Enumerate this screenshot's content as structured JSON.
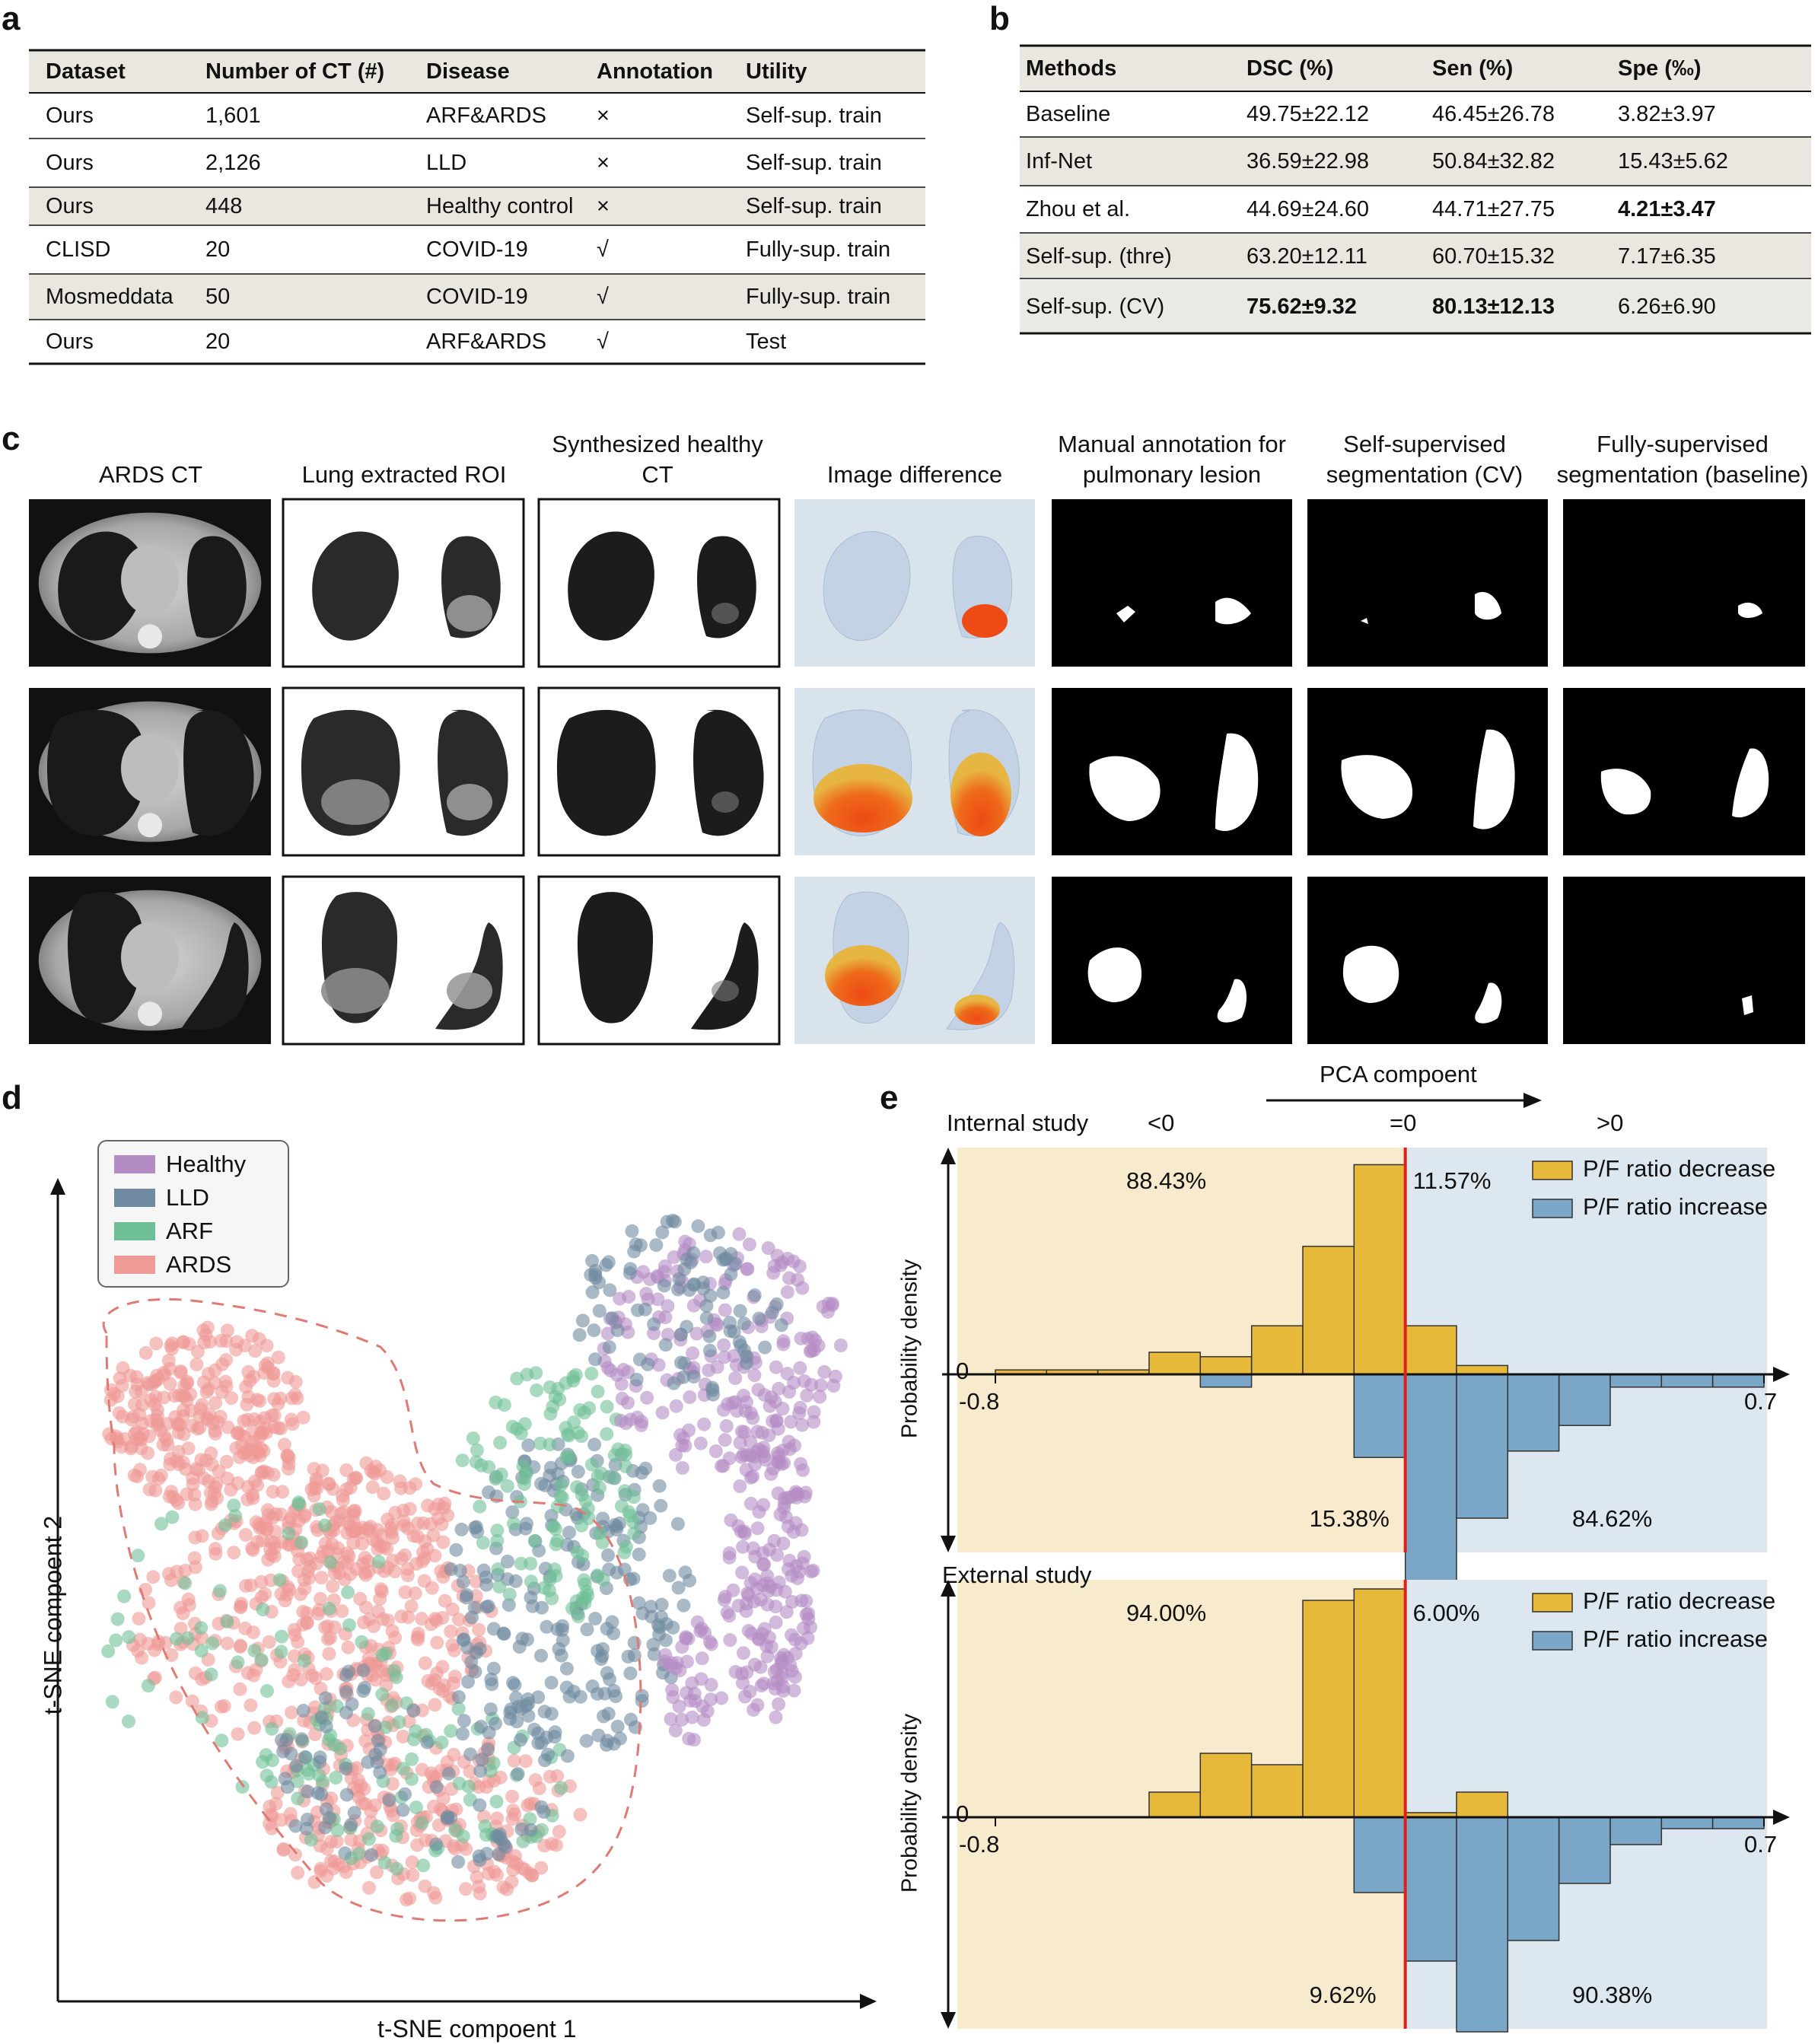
{
  "panels": {
    "a": "a",
    "b": "b",
    "c": "c",
    "d": "d",
    "e": "e"
  },
  "table_a": {
    "headers": [
      "Dataset",
      "Number of CT (#)",
      "Disease",
      "Annotation",
      "Utility"
    ],
    "rows": [
      [
        "Ours",
        "1,601",
        "ARF&ARDS",
        "×",
        "Self-sup. train"
      ],
      [
        "Ours",
        "2,126",
        "LLD",
        "×",
        "Self-sup. train"
      ],
      [
        "Ours",
        "448",
        "Healthy control",
        "×",
        "Self-sup. train"
      ],
      [
        "CLISD",
        "20",
        "COVID-19",
        "√",
        "Fully-sup. train"
      ],
      [
        "Mosmeddata",
        "50",
        "COVID-19",
        "√",
        "Fully-sup. train"
      ],
      [
        "Ours",
        "20",
        "ARF&ARDS",
        "√",
        "Test"
      ]
    ]
  },
  "table_b": {
    "headers": [
      "Methods",
      "DSC (%)",
      "Sen (%)",
      "Spe (‰)"
    ],
    "rows": [
      [
        "Baseline",
        "49.75±22.12",
        "46.45±26.78",
        "3.82±3.97"
      ],
      [
        "Inf-Net",
        "36.59±22.98",
        "50.84±32.82",
        "15.43±5.62"
      ],
      [
        "Zhou et al.",
        "44.69±24.60",
        "44.71±27.75",
        "4.21±3.47"
      ],
      [
        "Self-sup. (thre)",
        "63.20±12.11",
        "60.70±15.32",
        "7.17±6.35"
      ],
      [
        "Self-sup. (CV)",
        "75.62±9.32",
        "80.13±12.13",
        "6.26±6.90"
      ]
    ]
  },
  "panel_c": {
    "columns": [
      "ARDS CT",
      "Lung extracted ROI",
      "Synthesized healthy CT",
      "Image difference",
      "Manual annotation for pulmonary lesion",
      "Self-supervised segmentation (CV)",
      "Fully-supervised segmentation (baseline)"
    ]
  },
  "panel_d": {
    "legend": [
      {
        "label": "Healthy",
        "color": "#b48cc4"
      },
      {
        "label": "LLD",
        "color": "#6f8aa0"
      },
      {
        "label": "ARF",
        "color": "#6fbf96"
      },
      {
        "label": "ARDS",
        "color": "#ef9a96"
      }
    ],
    "xlabel": "t-SNE compoent 1",
    "ylabel": "t-SNE compoent 2"
  },
  "panel_e": {
    "pca_label": "PCA compoent",
    "zones": [
      "<0",
      "=0",
      ">0"
    ],
    "series_colors": {
      "decrease": "#e6b93a",
      "increase": "#7aa6c7",
      "neg_bg": "#f8ebcd",
      "pos_bg": "#dde7f0",
      "threshold": "#e0201a"
    },
    "legend": [
      "P/F ratio decrease",
      "P/F ratio increase"
    ],
    "ylabel": "Probability density",
    "zero": "0",
    "xmin_label": "-0.8",
    "xmax_label": "0.7",
    "internal": {
      "title": "Internal study",
      "pct_top_left": "88.43%",
      "pct_top_right": "11.57%",
      "pct_bot_left": "15.38%",
      "pct_bot_right": "84.62%"
    },
    "external": {
      "title": "External study",
      "pct_top_left": "94.00%",
      "pct_top_right": "6.00%",
      "pct_bot_left": "9.62%",
      "pct_bot_right": "90.38%"
    }
  },
  "chart_data": {
    "type": "bar",
    "x": [
      -0.75,
      -0.65,
      -0.55,
      -0.45,
      -0.35,
      -0.25,
      -0.15,
      -0.05,
      0.05,
      0.15,
      0.25,
      0.35,
      0.45,
      0.55,
      0.65
    ],
    "xlim": [
      -0.8,
      0.7
    ],
    "series": [
      {
        "name": "Internal study - P/F ratio decrease",
        "values": [
          0.02,
          0.02,
          0.02,
          0.1,
          0.08,
          0.22,
          0.58,
          0.95,
          0.22,
          0.04,
          0,
          0,
          0,
          0,
          0
        ]
      },
      {
        "name": "Internal study - P/F ratio increase",
        "values": [
          0,
          0,
          0,
          0,
          -0.04,
          0,
          0,
          -0.26,
          -0.74,
          -0.45,
          -0.24,
          -0.16,
          -0.04,
          -0.04,
          -0.04
        ]
      },
      {
        "name": "External study - P/F ratio decrease",
        "values": [
          0,
          0,
          0,
          0.11,
          0.28,
          0.23,
          0.95,
          1.0,
          0.02,
          0.11,
          0,
          0,
          0,
          0,
          0
        ]
      },
      {
        "name": "External study - P/F ratio increase",
        "values": [
          0,
          0,
          0,
          0,
          0,
          0,
          0,
          -0.33,
          -0.63,
          -0.94,
          -0.54,
          -0.29,
          -0.12,
          -0.05,
          -0.05
        ]
      }
    ]
  }
}
